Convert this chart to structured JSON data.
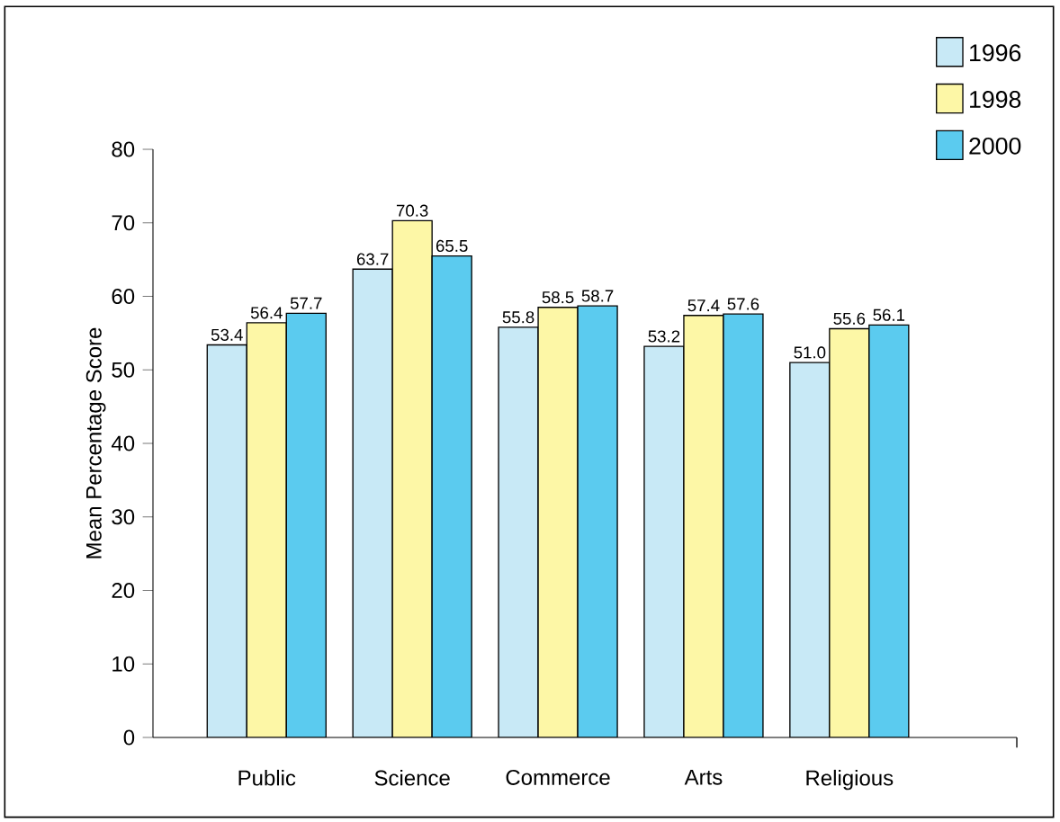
{
  "chart_data": {
    "type": "bar",
    "ylabel": "Mean Percentage Score",
    "categories": [
      "Public",
      "Science",
      "Commerce",
      "Arts",
      "Religious"
    ],
    "series": [
      {
        "name": "1996",
        "color": "#c8e9f6",
        "values": [
          53.4,
          63.7,
          55.8,
          53.2,
          51.0
        ],
        "value_labels": [
          "53.4",
          "63.7",
          "55.8",
          "53.2",
          "51.0"
        ]
      },
      {
        "name": "1998",
        "color": "#fdf7a6",
        "values": [
          56.4,
          70.3,
          58.5,
          57.4,
          55.6
        ],
        "value_labels": [
          "56.4",
          "70.3",
          "58.5",
          "57.4",
          "55.6"
        ]
      },
      {
        "name": "2000",
        "color": "#5bcbef",
        "values": [
          57.7,
          65.5,
          58.7,
          57.6,
          56.1
        ],
        "value_labels": [
          "57.7",
          "65.5",
          "58.7",
          "57.6",
          "56.1"
        ]
      }
    ],
    "ylim": [
      0,
      80
    ],
    "yticks": [
      0,
      10,
      20,
      30,
      40,
      50,
      60,
      70,
      80
    ],
    "grid": false,
    "legend": "top right"
  }
}
